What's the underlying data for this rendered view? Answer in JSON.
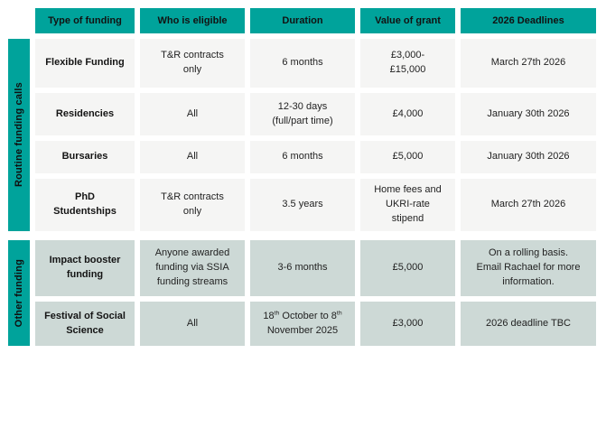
{
  "palette": {
    "teal": "#00a39b",
    "row_gray": "#f5f5f4",
    "row_teal": "#cdd9d6",
    "text": "#1d1d1d"
  },
  "headers": {
    "funding": "Type of funding",
    "eligible": "Who is eligible",
    "duration": "Duration",
    "value": "Value of grant",
    "deadlines": "2026 Deadlines"
  },
  "sections": [
    {
      "label": "Routine funding calls",
      "rows": [
        {
          "funding": "Flexible Funding",
          "eligible": "T&R contracts\nonly",
          "duration": "6 months",
          "value": "£3,000-\n£15,000",
          "deadline": "March 27th 2026"
        },
        {
          "funding": "Residencies",
          "eligible": "All",
          "duration": "12-30 days\n(full/part time)",
          "value": "£4,000",
          "deadline": "January 30th 2026"
        },
        {
          "funding": "Bursaries",
          "eligible": "All",
          "duration": "6 months",
          "value": "£5,000",
          "deadline": "January 30th 2026"
        },
        {
          "funding": "PhD\nStudentships",
          "eligible": "T&R contracts\nonly",
          "duration": "3.5 years",
          "value": "Home fees and\nUKRI-rate\nstipend",
          "deadline": "March 27th 2026"
        }
      ]
    },
    {
      "label": "Other funding",
      "rows": [
        {
          "funding": "Impact booster\nfunding",
          "eligible": "Anyone awarded\nfunding via SSIA\nfunding streams",
          "duration": "3-6 months",
          "value": "£5,000",
          "deadline": "On a rolling basis.\nEmail Rachael for more\ninformation."
        },
        {
          "funding": "Festival of Social\nScience",
          "eligible": "All",
          "duration_parts": [
            "18",
            "th",
            " October to 8",
            "th",
            "\nNovember 2025"
          ],
          "value": "£3,000",
          "deadline": "2026 deadline TBC"
        }
      ]
    }
  ]
}
